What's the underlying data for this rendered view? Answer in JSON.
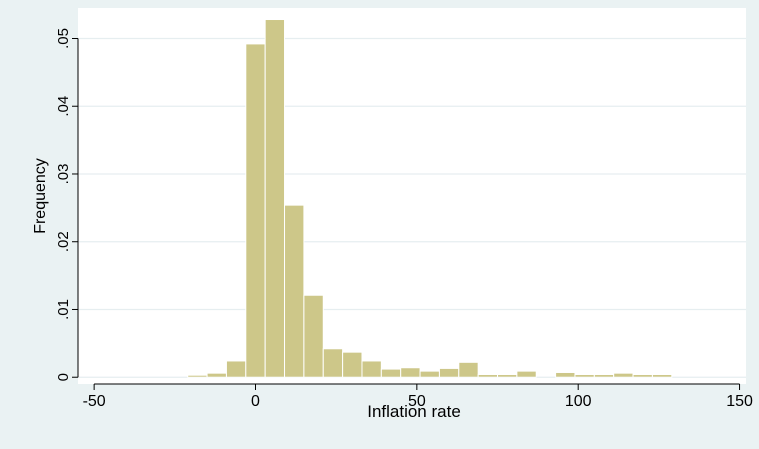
{
  "chart_data": {
    "type": "bar",
    "title": "",
    "xlabel": "Inflation rate",
    "ylabel": "Frequency",
    "xlim": [
      -55,
      152
    ],
    "ylim": [
      -0.001,
      0.0545
    ],
    "x_ticks": [
      -50,
      0,
      50,
      100,
      150
    ],
    "x_tick_labels": [
      "-50",
      "0",
      "50",
      "100",
      "150"
    ],
    "y_ticks": [
      0,
      0.01,
      0.02,
      0.03,
      0.04,
      0.05
    ],
    "y_tick_labels": [
      "0",
      ".01",
      ".02",
      ".03",
      ".04",
      ".05"
    ],
    "grid": true,
    "bar_color": "#cdc789",
    "bar_edge_color": "#ffffff",
    "plot_background": "#ffffff",
    "background": "#eaf2f3",
    "bin_width": 6,
    "bin_edges": [
      -21,
      -15,
      -9,
      -3,
      3,
      9,
      15,
      21,
      27,
      33,
      39,
      45,
      51,
      57,
      63,
      69,
      75,
      81,
      87,
      93,
      99,
      105,
      111,
      117,
      123,
      129,
      135
    ],
    "values": [
      0.0003,
      0.0006,
      0.0024,
      0.0492,
      0.0528,
      0.0254,
      0.0121,
      0.0042,
      0.0037,
      0.0024,
      0.0012,
      0.0014,
      0.0009,
      0.0013,
      0.0022,
      0.0004,
      0.0004,
      0.0009,
      0.0,
      0.0007,
      0.0004,
      0.0004,
      0.0006,
      0.0004,
      0.0004,
      0.0
    ]
  }
}
